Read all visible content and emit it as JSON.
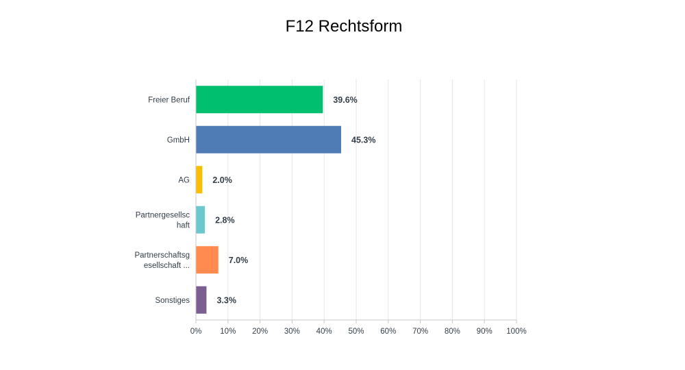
{
  "chart_data": {
    "type": "bar",
    "orientation": "horizontal",
    "title": "F12 Rechtsform",
    "categories": [
      [
        "Freier Beruf"
      ],
      [
        "GmbH"
      ],
      [
        "AG"
      ],
      [
        "Partnergesellsc",
        "haft"
      ],
      [
        "Partnerschaftsg",
        "esellschaft ..."
      ],
      [
        "Sonstiges"
      ]
    ],
    "values": [
      39.6,
      45.3,
      2.0,
      2.8,
      7.0,
      3.3
    ],
    "value_labels": [
      "39.6%",
      "45.3%",
      "2.0%",
      "2.8%",
      "7.0%",
      "3.3%"
    ],
    "colors": [
      "#00bf6f",
      "#507cb6",
      "#f9be00",
      "#6bc8cd",
      "#ff8b4f",
      "#7d5e90"
    ],
    "xlim": [
      0,
      100
    ],
    "xticks": [
      "0%",
      "10%",
      "20%",
      "30%",
      "40%",
      "50%",
      "60%",
      "70%",
      "80%",
      "90%",
      "100%"
    ],
    "grid": true,
    "legend": "none"
  }
}
